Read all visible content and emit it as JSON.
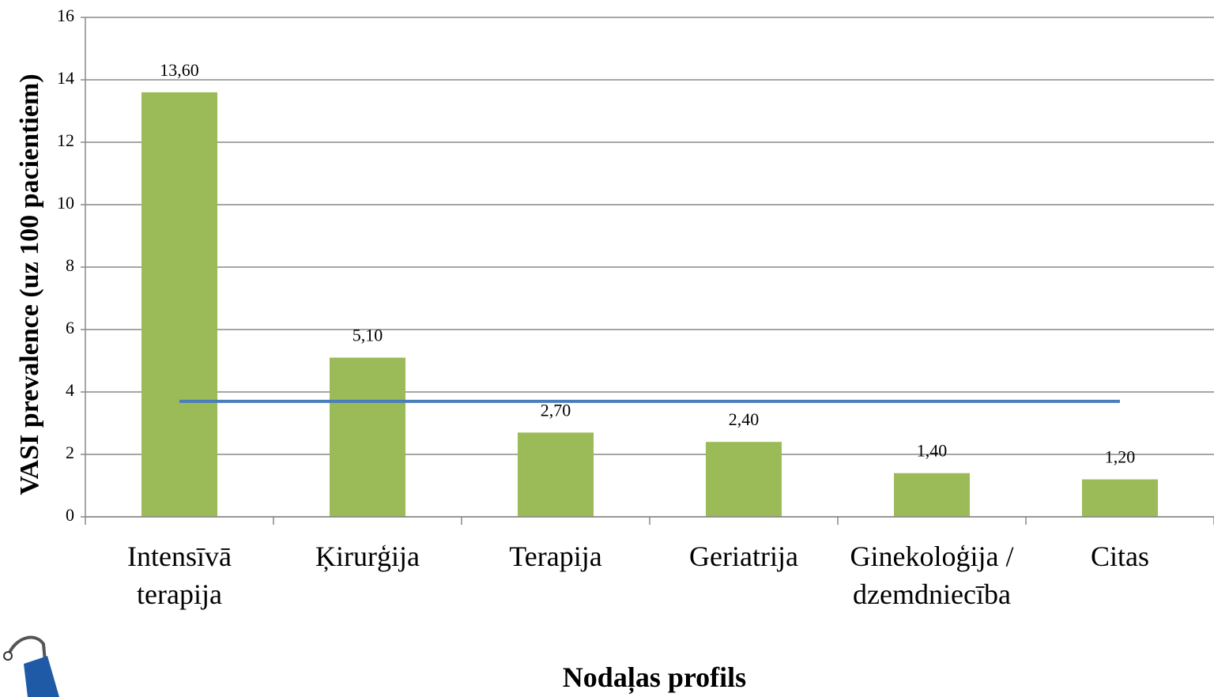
{
  "chart_data": {
    "type": "bar",
    "categories": [
      "Intensīvā terapija",
      "Ķirurģija",
      "Terapija",
      "Geriatrija",
      "Ginekoloģija / dzemdniecība",
      "Citas"
    ],
    "series": [
      {
        "type": "bar",
        "color": "#9bbb59",
        "values": [
          13.6,
          5.1,
          2.7,
          2.4,
          1.4,
          1.2
        ],
        "value_labels": [
          "13,60",
          "5,10",
          "2,70",
          "2,40",
          "1,40",
          "1,20"
        ]
      },
      {
        "type": "line",
        "color": "#4a7ebb",
        "values": [
          3.7,
          3.7,
          3.7,
          3.7,
          3.7,
          3.7
        ]
      }
    ],
    "ylabel": "VASI prevalence (uz 100 pacientiem)",
    "xlabel": "Nodaļas profils",
    "ylim": [
      0,
      16
    ],
    "yticks": [
      0,
      2,
      4,
      6,
      8,
      10,
      12,
      14,
      16
    ],
    "grid": true
  }
}
